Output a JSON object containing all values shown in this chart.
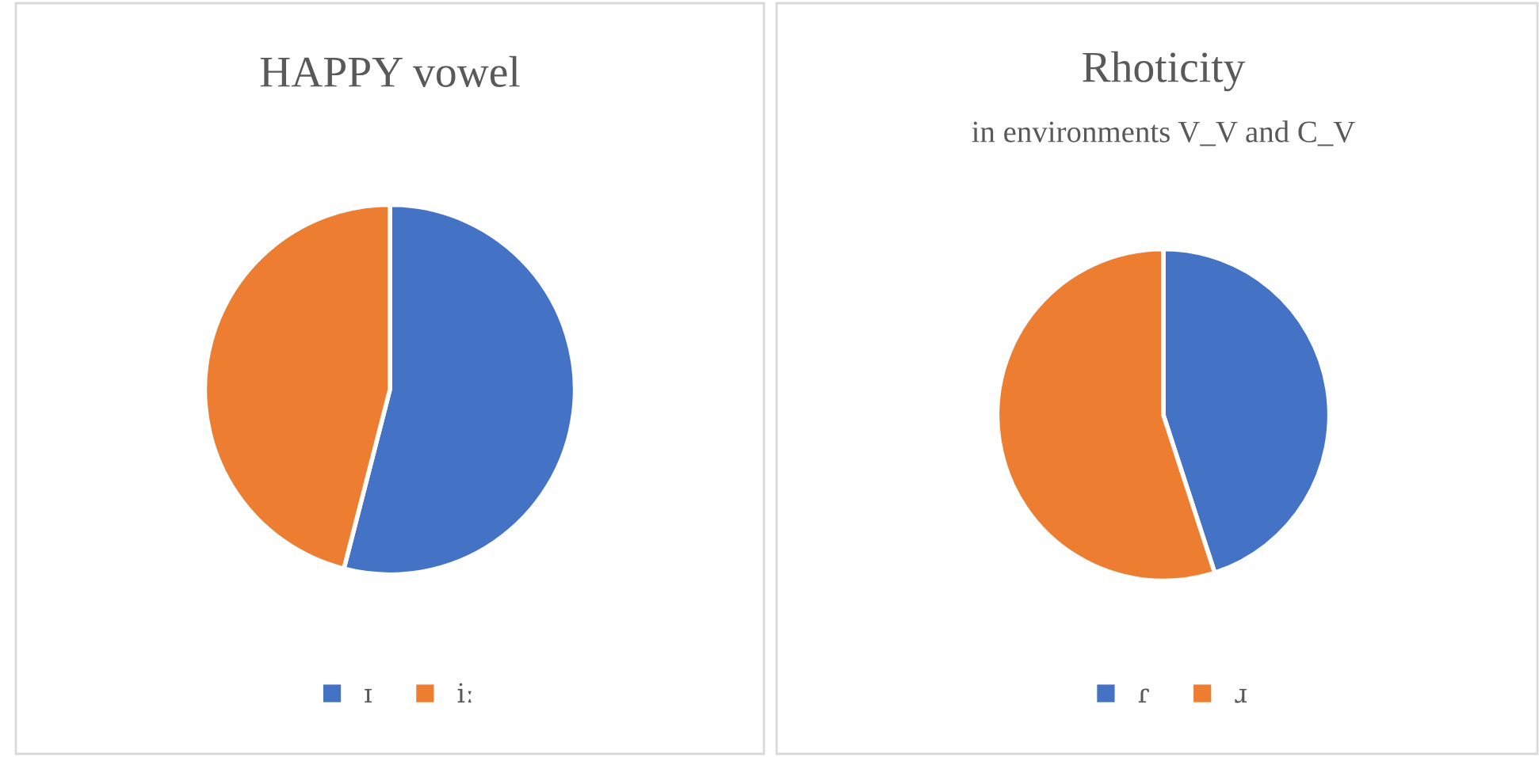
{
  "chart_data": [
    {
      "type": "pie",
      "title": "HAPPY vowel",
      "categories": [
        "ɪ",
        "iː"
      ],
      "values": [
        54,
        46
      ],
      "colors": [
        "#4472c4",
        "#ed7d31"
      ],
      "legend": "bottom"
    },
    {
      "type": "pie",
      "title": "Rhoticity",
      "subtitle": "in environments V_V and C_V",
      "categories": [
        "ɾ",
        "ɹ"
      ],
      "values": [
        45,
        55
      ],
      "colors": [
        "#4472c4",
        "#ed7d31"
      ],
      "legend": "bottom"
    }
  ]
}
